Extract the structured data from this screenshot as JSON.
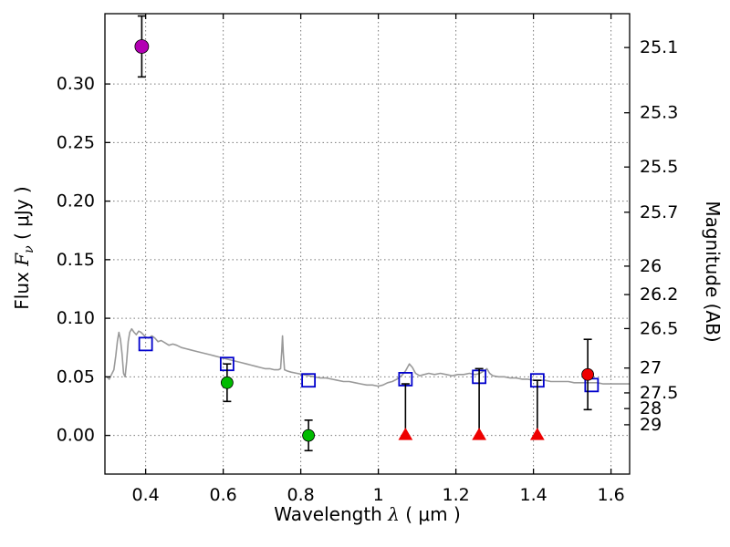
{
  "chart_data": {
    "type": "scatter",
    "title": "",
    "xlabel": "Wavelength λ ( μm )",
    "ylabel": "Flux Fν ( μJy )",
    "ylabel_right": "Magnitude (AB)",
    "xlabel_parts": [
      "Wavelength  ",
      "λ",
      " ( μm )"
    ],
    "ylabel_parts": [
      "Flux  ",
      "F",
      "ν",
      "  ( μJy )"
    ],
    "xlim": [
      0.295,
      1.648
    ],
    "ylim": [
      -0.033,
      0.36
    ],
    "grid": true,
    "legend": "none",
    "xticks": [
      {
        "label": "0.4",
        "value": 0.4
      },
      {
        "label": "0.6",
        "value": 0.6
      },
      {
        "label": "0.8",
        "value": 0.8
      },
      {
        "label": "1",
        "value": 1.0
      },
      {
        "label": "1.2",
        "value": 1.2
      },
      {
        "label": "1.4",
        "value": 1.4
      },
      {
        "label": "1.6",
        "value": 1.6
      }
    ],
    "yticks_left": [
      {
        "label": "0.00",
        "value": 0.0
      },
      {
        "label": "0.05",
        "value": 0.05
      },
      {
        "label": "0.10",
        "value": 0.1
      },
      {
        "label": "0.15",
        "value": 0.15
      },
      {
        "label": "0.20",
        "value": 0.2
      },
      {
        "label": "0.25",
        "value": 0.25
      },
      {
        "label": "0.30",
        "value": 0.3
      }
    ],
    "yticks_right": [
      {
        "label": "25.1",
        "flux": 0.3311
      },
      {
        "label": "25.3",
        "flux": 0.2754
      },
      {
        "label": "25.5",
        "flux": 0.2291
      },
      {
        "label": "25.7",
        "flux": 0.1905
      },
      {
        "label": "26",
        "flux": 0.1445
      },
      {
        "label": "26.2",
        "flux": 0.1202
      },
      {
        "label": "26.5",
        "flux": 0.0912
      },
      {
        "label": "27",
        "flux": 0.0575
      },
      {
        "label": "27.5",
        "flux": 0.0363
      },
      {
        "label": "28",
        "flux": 0.0229
      },
      {
        "label": "29",
        "flux": 0.0091
      }
    ],
    "series": [
      {
        "name": "model-spectrum",
        "type": "line",
        "color": "#999999",
        "width": 1.6,
        "points": [
          [
            0.3,
            0.05
          ],
          [
            0.306,
            0.048
          ],
          [
            0.312,
            0.052
          ],
          [
            0.318,
            0.056
          ],
          [
            0.323,
            0.068
          ],
          [
            0.327,
            0.08
          ],
          [
            0.331,
            0.088
          ],
          [
            0.335,
            0.082
          ],
          [
            0.339,
            0.07
          ],
          [
            0.343,
            0.053
          ],
          [
            0.347,
            0.05
          ],
          [
            0.351,
            0.063
          ],
          [
            0.355,
            0.08
          ],
          [
            0.359,
            0.088
          ],
          [
            0.364,
            0.091
          ],
          [
            0.37,
            0.088
          ],
          [
            0.376,
            0.086
          ],
          [
            0.382,
            0.089
          ],
          [
            0.388,
            0.088
          ],
          [
            0.394,
            0.086
          ],
          [
            0.4,
            0.084
          ],
          [
            0.408,
            0.083
          ],
          [
            0.416,
            0.085
          ],
          [
            0.424,
            0.083
          ],
          [
            0.432,
            0.08
          ],
          [
            0.44,
            0.081
          ],
          [
            0.45,
            0.079
          ],
          [
            0.46,
            0.077
          ],
          [
            0.47,
            0.078
          ],
          [
            0.48,
            0.077
          ],
          [
            0.492,
            0.075
          ],
          [
            0.504,
            0.074
          ],
          [
            0.516,
            0.073
          ],
          [
            0.528,
            0.072
          ],
          [
            0.54,
            0.071
          ],
          [
            0.552,
            0.07
          ],
          [
            0.564,
            0.069
          ],
          [
            0.576,
            0.068
          ],
          [
            0.588,
            0.067
          ],
          [
            0.6,
            0.066
          ],
          [
            0.612,
            0.065
          ],
          [
            0.624,
            0.064
          ],
          [
            0.636,
            0.063
          ],
          [
            0.648,
            0.062
          ],
          [
            0.66,
            0.061
          ],
          [
            0.672,
            0.06
          ],
          [
            0.684,
            0.059
          ],
          [
            0.696,
            0.058
          ],
          [
            0.708,
            0.057
          ],
          [
            0.72,
            0.057
          ],
          [
            0.732,
            0.056
          ],
          [
            0.742,
            0.056
          ],
          [
            0.748,
            0.057
          ],
          [
            0.751,
            0.072
          ],
          [
            0.753,
            0.085
          ],
          [
            0.755,
            0.07
          ],
          [
            0.758,
            0.056
          ],
          [
            0.765,
            0.055
          ],
          [
            0.775,
            0.054
          ],
          [
            0.79,
            0.053
          ],
          [
            0.805,
            0.052
          ],
          [
            0.82,
            0.051
          ],
          [
            0.835,
            0.05
          ],
          [
            0.85,
            0.049
          ],
          [
            0.865,
            0.049
          ],
          [
            0.88,
            0.048
          ],
          [
            0.895,
            0.047
          ],
          [
            0.91,
            0.046
          ],
          [
            0.925,
            0.046
          ],
          [
            0.94,
            0.045
          ],
          [
            0.955,
            0.044
          ],
          [
            0.97,
            0.043
          ],
          [
            0.985,
            0.043
          ],
          [
            1.0,
            0.042
          ],
          [
            1.012,
            0.043
          ],
          [
            1.024,
            0.045
          ],
          [
            1.036,
            0.046
          ],
          [
            1.048,
            0.048
          ],
          [
            1.06,
            0.051
          ],
          [
            1.07,
            0.055
          ],
          [
            1.08,
            0.061
          ],
          [
            1.088,
            0.058
          ],
          [
            1.096,
            0.053
          ],
          [
            1.106,
            0.051
          ],
          [
            1.118,
            0.052
          ],
          [
            1.13,
            0.053
          ],
          [
            1.145,
            0.052
          ],
          [
            1.16,
            0.053
          ],
          [
            1.175,
            0.052
          ],
          [
            1.19,
            0.051
          ],
          [
            1.205,
            0.052
          ],
          [
            1.22,
            0.052
          ],
          [
            1.235,
            0.053
          ],
          [
            1.25,
            0.052
          ],
          [
            1.262,
            0.053
          ],
          [
            1.272,
            0.055
          ],
          [
            1.28,
            0.057
          ],
          [
            1.287,
            0.053
          ],
          [
            1.295,
            0.051
          ],
          [
            1.31,
            0.05
          ],
          [
            1.325,
            0.05
          ],
          [
            1.34,
            0.049
          ],
          [
            1.355,
            0.049
          ],
          [
            1.37,
            0.048
          ],
          [
            1.385,
            0.048
          ],
          [
            1.4,
            0.047
          ],
          [
            1.415,
            0.047
          ],
          [
            1.43,
            0.047
          ],
          [
            1.445,
            0.046
          ],
          [
            1.46,
            0.046
          ],
          [
            1.475,
            0.046
          ],
          [
            1.49,
            0.046
          ],
          [
            1.505,
            0.045
          ],
          [
            1.52,
            0.045
          ],
          [
            1.535,
            0.045
          ],
          [
            1.55,
            0.045
          ],
          [
            1.565,
            0.045
          ],
          [
            1.58,
            0.044
          ],
          [
            1.595,
            0.044
          ],
          [
            1.61,
            0.044
          ],
          [
            1.625,
            0.044
          ],
          [
            1.64,
            0.044
          ],
          [
            1.648,
            0.044
          ]
        ]
      },
      {
        "name": "model-photometry-squares",
        "type": "scatter",
        "marker": "square-open",
        "color": "#0000cc",
        "size": 14,
        "points": [
          [
            0.4,
            0.078
          ],
          [
            0.61,
            0.061
          ],
          [
            0.82,
            0.047
          ],
          [
            1.07,
            0.048
          ],
          [
            1.26,
            0.05
          ],
          [
            1.41,
            0.047
          ],
          [
            1.55,
            0.043
          ]
        ]
      },
      {
        "name": "detection-u-band",
        "type": "scatter",
        "marker": "circle",
        "color": "#b300b3",
        "size": 15,
        "points": [
          [
            0.39,
            0.332
          ]
        ],
        "yerr": [
          0.026
        ]
      },
      {
        "name": "detections-optical",
        "type": "scatter",
        "marker": "circle",
        "color": "#00bb00",
        "size": 13,
        "points": [
          [
            0.61,
            0.045
          ],
          [
            0.82,
            0.0
          ]
        ],
        "yerr": [
          0.016,
          0.013
        ]
      },
      {
        "name": "upper-limits-nir",
        "type": "scatter",
        "marker": "triangle-up",
        "color": "#ee0000",
        "size": 13,
        "points": [
          [
            1.07,
            0.0
          ],
          [
            1.26,
            0.0
          ],
          [
            1.41,
            0.0
          ]
        ],
        "yerr_plus": [
          0.044,
          0.057,
          0.047
        ]
      },
      {
        "name": "detection-red",
        "type": "scatter",
        "marker": "circle",
        "color": "#ee0000",
        "size": 13,
        "points": [
          [
            1.54,
            0.052
          ]
        ],
        "yerr": [
          0.03
        ]
      }
    ],
    "style": {
      "grid_color": "#777777",
      "axes_color": "#000000",
      "errorbar_color": "#000000",
      "background": "#ffffff"
    }
  }
}
